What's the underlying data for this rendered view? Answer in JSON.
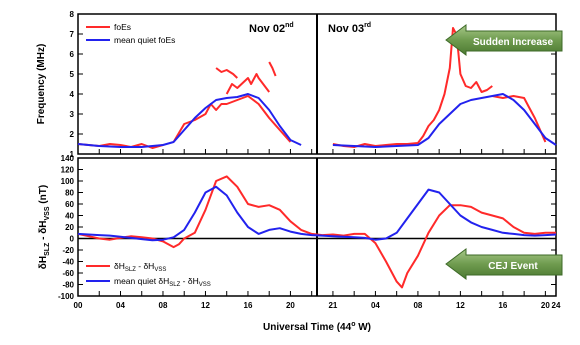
{
  "chart_data": [
    {
      "type": "line",
      "panel": "top",
      "ylabel": "Frequency (MHz)",
      "ylim": [
        1,
        8
      ],
      "yticks": [
        "1",
        "2",
        "3",
        "4",
        "5",
        "6",
        "7",
        "8"
      ],
      "legend": [
        {
          "label": "foEs",
          "color": "#ff2a2a"
        },
        {
          "label": "mean quiet foEs",
          "color": "#2222ee"
        }
      ],
      "date_labels": [
        {
          "text": "Nov 02",
          "sup": "nd"
        },
        {
          "text": "Nov 03",
          "sup": "rd"
        }
      ],
      "annotation": "Sudden Increase",
      "series": [
        {
          "name": "foEs",
          "color": "#ff2a2a",
          "segments": [
            [
              [
                0,
                1.5
              ],
              [
                1,
                1.45
              ],
              [
                2,
                1.4
              ],
              [
                3,
                1.5
              ],
              [
                4,
                1.45
              ],
              [
                5,
                1.35
              ],
              [
                6,
                1.5
              ],
              [
                7,
                1.3
              ],
              [
                8,
                1.45
              ]
            ],
            [
              [
                9,
                1.6
              ],
              [
                10,
                2.5
              ],
              [
                11,
                2.7
              ],
              [
                12,
                3.0
              ],
              [
                12.5,
                3.5
              ],
              [
                13,
                3.2
              ],
              [
                13.5,
                3.5
              ],
              [
                14,
                3.5
              ],
              [
                14.5,
                3.6
              ],
              [
                15,
                3.7
              ],
              [
                16,
                3.9
              ],
              [
                17,
                3.5
              ],
              [
                18,
                2.8
              ],
              [
                19,
                2.2
              ],
              [
                20,
                1.6
              ]
            ],
            [
              [
                14,
                4.0
              ],
              [
                14.5,
                4.5
              ],
              [
                15,
                4.3
              ],
              [
                16,
                4.8
              ],
              [
                16.3,
                4.5
              ],
              [
                16.8,
                5.0
              ],
              [
                17,
                4.8
              ],
              [
                18,
                4.1
              ]
            ],
            [
              [
                13,
                5.3
              ],
              [
                13.5,
                5.1
              ],
              [
                14,
                5.2
              ],
              [
                14.6,
                5.0
              ],
              [
                15,
                4.8
              ]
            ],
            [
              [
                18,
                5.6
              ],
              [
                18.3,
                5.3
              ],
              [
                18.6,
                4.9
              ]
            ],
            [
              [
                0,
                1.5
              ],
              [
                1,
                1.4
              ],
              [
                2,
                1.35
              ],
              [
                3,
                1.5
              ],
              [
                4,
                1.4
              ],
              [
                5,
                1.45
              ],
              [
                6,
                1.5
              ],
              [
                7,
                1.5
              ],
              [
                8,
                1.55
              ],
              [
                8.5,
                1.9
              ],
              [
                9,
                2.4
              ],
              [
                9.5,
                2.7
              ],
              [
                10,
                3.2
              ],
              [
                10.5,
                4.0
              ],
              [
                11,
                5.3
              ],
              [
                11.3,
                7.3
              ],
              [
                11.6,
                7.0
              ],
              [
                11.8,
                6.1
              ],
              [
                12,
                5.0
              ],
              [
                12.5,
                4.4
              ],
              [
                13,
                4.3
              ],
              [
                13.5,
                4.6
              ],
              [
                14,
                4.1
              ],
              [
                14.5,
                4.2
              ],
              [
                15,
                4.4
              ]
            ],
            [
              [
                15,
                3.9
              ],
              [
                16,
                3.8
              ],
              [
                17,
                3.9
              ],
              [
                18,
                3.8
              ],
              [
                18.5,
                3.3
              ],
              [
                19,
                2.8
              ],
              [
                19.5,
                2.2
              ],
              [
                20,
                1.6
              ]
            ]
          ]
        },
        {
          "name": "mean quiet foEs",
          "color": "#2222ee",
          "segments": [
            [
              [
                0,
                1.5
              ],
              [
                2,
                1.4
              ],
              [
                4,
                1.35
              ],
              [
                6,
                1.35
              ],
              [
                8,
                1.45
              ],
              [
                9,
                1.6
              ],
              [
                10,
                2.2
              ],
              [
                11,
                2.8
              ],
              [
                12,
                3.3
              ],
              [
                13,
                3.7
              ],
              [
                14,
                3.8
              ],
              [
                15,
                3.85
              ],
              [
                16,
                4.0
              ],
              [
                17,
                3.8
              ],
              [
                18,
                3.2
              ],
              [
                19,
                2.4
              ],
              [
                20,
                1.7
              ],
              [
                21,
                1.45
              ]
            ],
            [
              [
                0,
                1.45
              ],
              [
                2,
                1.4
              ],
              [
                4,
                1.35
              ],
              [
                6,
                1.4
              ],
              [
                8,
                1.45
              ],
              [
                9,
                1.8
              ],
              [
                10,
                2.5
              ],
              [
                11,
                3.0
              ],
              [
                12,
                3.5
              ],
              [
                13,
                3.7
              ],
              [
                14,
                3.8
              ],
              [
                15,
                3.9
              ],
              [
                16,
                4.0
              ],
              [
                17,
                3.7
              ],
              [
                18,
                3.2
              ],
              [
                19,
                2.5
              ],
              [
                20,
                1.8
              ],
              [
                21,
                1.45
              ]
            ]
          ]
        }
      ]
    },
    {
      "type": "line",
      "panel": "bottom",
      "xlabel": "Universal Time (44",
      "xlabel_sup": "o",
      "xlabel_tail": " W)",
      "xticks": [
        "00",
        "04",
        "08",
        "12",
        "16",
        "20",
        "21",
        "04",
        "08",
        "12",
        "16",
        "20",
        "24"
      ],
      "ylabel": "",
      "ylim": [
        -100,
        140
      ],
      "yticks": [
        "-100",
        "-80",
        "-60",
        "-40",
        "-20",
        "0",
        "20",
        "40",
        "60",
        "80",
        "100",
        "120",
        "140"
      ],
      "legend": [
        {
          "label": "δH",
          "sub1": "SLZ",
          "mid": " - δH",
          "sub2": "VSS",
          "color": "#ff2a2a"
        },
        {
          "label": "mean quiet δH",
          "sub1": "SLZ",
          "mid": " - δH",
          "sub2": "VSS",
          "color": "#2222ee"
        }
      ],
      "annotation": "CEJ Event",
      "series": [
        {
          "name": "δH SLZ - δH VSS",
          "color": "#ff2a2a",
          "segments": [
            [
              [
                0,
                8
              ],
              [
                1,
                4
              ],
              [
                2,
                0
              ],
              [
                3,
                -2
              ],
              [
                4,
                1
              ],
              [
                5,
                4
              ],
              [
                6,
                2
              ],
              [
                7,
                0
              ],
              [
                8,
                -5
              ],
              [
                9,
                -15
              ],
              [
                9.5,
                -10
              ],
              [
                10,
                0
              ],
              [
                11,
                10
              ],
              [
                12,
                50
              ],
              [
                13,
                100
              ],
              [
                14,
                108
              ],
              [
                15,
                90
              ],
              [
                16,
                60
              ],
              [
                17,
                55
              ],
              [
                18,
                58
              ],
              [
                19,
                50
              ],
              [
                20,
                30
              ],
              [
                21,
                15
              ],
              [
                22,
                8
              ],
              [
                23,
                6
              ],
              [
                24,
                7
              ],
              [
                25,
                5
              ],
              [
                26,
                8
              ],
              [
                27,
                8
              ],
              [
                28,
                -8
              ],
              [
                29,
                -40
              ],
              [
                30,
                -75
              ],
              [
                30.5,
                -85
              ],
              [
                31,
                -60
              ],
              [
                32,
                -30
              ],
              [
                33,
                10
              ],
              [
                34,
                40
              ],
              [
                35,
                58
              ],
              [
                36,
                58
              ],
              [
                37,
                55
              ],
              [
                38,
                45
              ],
              [
                39,
                40
              ],
              [
                40,
                35
              ],
              [
                41,
                20
              ],
              [
                42,
                10
              ],
              [
                43,
                8
              ],
              [
                44,
                10
              ],
              [
                45,
                10
              ]
            ]
          ]
        },
        {
          "name": "mean quiet δH SLZ - δH VSS",
          "color": "#2222ee",
          "segments": [
            [
              [
                0,
                8
              ],
              [
                1,
                7
              ],
              [
                2,
                6
              ],
              [
                3,
                5
              ],
              [
                4,
                3
              ],
              [
                5,
                1
              ],
              [
                6,
                -1
              ],
              [
                7,
                -3
              ],
              [
                8,
                -2
              ],
              [
                9,
                2
              ],
              [
                10,
                15
              ],
              [
                11,
                45
              ],
              [
                12,
                80
              ],
              [
                13,
                90
              ],
              [
                14,
                75
              ],
              [
                15,
                45
              ],
              [
                16,
                20
              ],
              [
                17,
                8
              ],
              [
                18,
                15
              ],
              [
                19,
                18
              ],
              [
                20,
                12
              ],
              [
                21,
                8
              ],
              [
                22,
                6
              ],
              [
                23,
                5
              ],
              [
                24,
                4
              ],
              [
                25,
                3
              ],
              [
                26,
                2
              ],
              [
                27,
                1
              ],
              [
                28,
                -2
              ],
              [
                29,
                0
              ],
              [
                30,
                10
              ],
              [
                31,
                35
              ],
              [
                32,
                60
              ],
              [
                33,
                85
              ],
              [
                34,
                80
              ],
              [
                35,
                60
              ],
              [
                36,
                40
              ],
              [
                37,
                28
              ],
              [
                38,
                20
              ],
              [
                39,
                15
              ],
              [
                40,
                10
              ],
              [
                41,
                8
              ],
              [
                42,
                6
              ],
              [
                43,
                5
              ],
              [
                44,
                6
              ],
              [
                45,
                7
              ]
            ]
          ]
        }
      ]
    }
  ]
}
